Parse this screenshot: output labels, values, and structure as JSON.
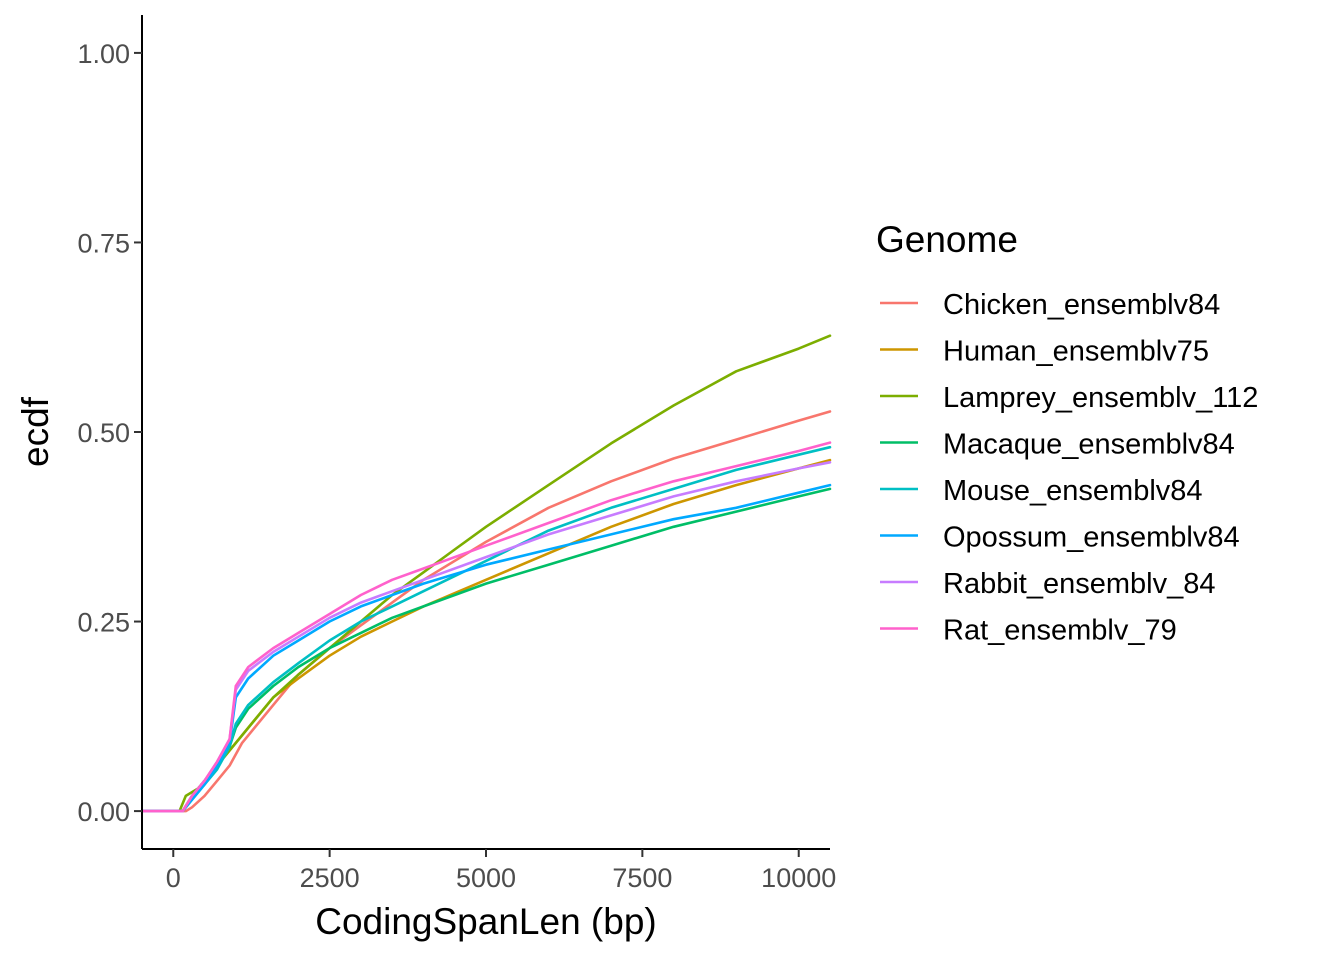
{
  "chart_data": {
    "type": "line",
    "xlabel": "CodingSpanLen (bp)",
    "ylabel": "ecdf",
    "xlim": [
      -500,
      10500
    ],
    "ylim": [
      -0.05,
      1.05
    ],
    "x_ticks": [
      0,
      2500,
      5000,
      7500,
      10000
    ],
    "x_tick_labels": [
      "0",
      "2500",
      "5000",
      "7500",
      "10000"
    ],
    "y_ticks": [
      0.0,
      0.25,
      0.5,
      0.75,
      1.0
    ],
    "y_tick_labels": [
      "0.00",
      "0.25",
      "0.50",
      "0.75",
      "1.00"
    ],
    "grid": false,
    "legend": {
      "title": "Genome",
      "position": "right"
    },
    "series": [
      {
        "name": "Chicken_ensemblv84",
        "color": "#F8766D",
        "x": [
          -500,
          200,
          300,
          500,
          700,
          900,
          1100,
          1300,
          1600,
          2000,
          2500,
          3000,
          3500,
          4000,
          5000,
          6000,
          7000,
          8000,
          9000,
          10000,
          10500
        ],
        "y": [
          0,
          0,
          0.005,
          0.02,
          0.04,
          0.06,
          0.09,
          0.11,
          0.14,
          0.18,
          0.215,
          0.245,
          0.275,
          0.305,
          0.355,
          0.4,
          0.435,
          0.465,
          0.49,
          0.515,
          0.527
        ]
      },
      {
        "name": "Human_ensemblv75",
        "color": "#CD9600",
        "x": [
          -500,
          150,
          300,
          500,
          700,
          900,
          1100,
          1300,
          1600,
          2000,
          2500,
          3000,
          3500,
          4000,
          5000,
          6000,
          7000,
          8000,
          9000,
          10000,
          10500
        ],
        "y": [
          0,
          0,
          0.02,
          0.04,
          0.06,
          0.08,
          0.1,
          0.12,
          0.15,
          0.175,
          0.205,
          0.23,
          0.25,
          0.27,
          0.305,
          0.34,
          0.375,
          0.405,
          0.43,
          0.452,
          0.463
        ]
      },
      {
        "name": "Lamprey_ensemblv_112",
        "color": "#7CAE00",
        "x": [
          -500,
          100,
          200,
          400,
          600,
          800,
          1000,
          1200,
          1600,
          2000,
          2500,
          3000,
          3500,
          4000,
          4500,
          5000,
          6000,
          7000,
          8000,
          9000,
          10000,
          10500
        ],
        "y": [
          0,
          0,
          0.02,
          0.03,
          0.05,
          0.07,
          0.09,
          0.11,
          0.15,
          0.18,
          0.215,
          0.25,
          0.285,
          0.315,
          0.345,
          0.375,
          0.43,
          0.485,
          0.535,
          0.58,
          0.61,
          0.627
        ]
      },
      {
        "name": "Macaque_ensemblv84",
        "color": "#00BE67",
        "x": [
          -500,
          150,
          300,
          500,
          700,
          900,
          1000,
          1200,
          1600,
          2000,
          2500,
          3000,
          3500,
          4000,
          5000,
          6000,
          7000,
          8000,
          9000,
          10000,
          10500
        ],
        "y": [
          0,
          0,
          0.02,
          0.04,
          0.06,
          0.085,
          0.11,
          0.135,
          0.165,
          0.19,
          0.215,
          0.235,
          0.255,
          0.27,
          0.3,
          0.325,
          0.35,
          0.375,
          0.395,
          0.415,
          0.425
        ]
      },
      {
        "name": "Mouse_ensemblv84",
        "color": "#00BFC4",
        "x": [
          -500,
          150,
          300,
          500,
          700,
          900,
          1000,
          1200,
          1600,
          2000,
          2500,
          3000,
          3500,
          4000,
          5000,
          6000,
          7000,
          8000,
          9000,
          10000,
          10500
        ],
        "y": [
          0,
          0,
          0.015,
          0.035,
          0.055,
          0.085,
          0.115,
          0.14,
          0.17,
          0.195,
          0.225,
          0.25,
          0.27,
          0.29,
          0.33,
          0.37,
          0.4,
          0.425,
          0.45,
          0.47,
          0.48
        ]
      },
      {
        "name": "Opossum_ensemblv84",
        "color": "#00A9FF",
        "x": [
          -500,
          150,
          300,
          500,
          700,
          900,
          1000,
          1200,
          1600,
          2000,
          2500,
          3000,
          3500,
          4000,
          5000,
          6000,
          7000,
          8000,
          9000,
          10000,
          10500
        ],
        "y": [
          0,
          0,
          0.015,
          0.035,
          0.06,
          0.09,
          0.15,
          0.175,
          0.205,
          0.225,
          0.25,
          0.27,
          0.285,
          0.3,
          0.325,
          0.345,
          0.365,
          0.385,
          0.4,
          0.42,
          0.43
        ]
      },
      {
        "name": "Rabbit_ensemblv_84",
        "color": "#C77CFF",
        "x": [
          -500,
          150,
          300,
          500,
          700,
          900,
          1000,
          1200,
          1600,
          2000,
          2500,
          3000,
          3500,
          4000,
          5000,
          6000,
          7000,
          8000,
          9000,
          10000,
          10500
        ],
        "y": [
          0,
          0,
          0.02,
          0.04,
          0.065,
          0.095,
          0.16,
          0.185,
          0.21,
          0.23,
          0.255,
          0.275,
          0.29,
          0.305,
          0.335,
          0.365,
          0.39,
          0.415,
          0.435,
          0.452,
          0.46
        ]
      },
      {
        "name": "Rat_ensemblv_79",
        "color": "#FF61CC",
        "x": [
          -500,
          150,
          300,
          500,
          700,
          900,
          1000,
          1200,
          1600,
          2000,
          2500,
          3000,
          3500,
          4000,
          5000,
          6000,
          7000,
          8000,
          9000,
          10000,
          10500
        ],
        "y": [
          0,
          0,
          0.02,
          0.04,
          0.065,
          0.095,
          0.165,
          0.19,
          0.215,
          0.235,
          0.26,
          0.285,
          0.305,
          0.32,
          0.35,
          0.38,
          0.41,
          0.435,
          0.455,
          0.475,
          0.486
        ]
      }
    ]
  }
}
